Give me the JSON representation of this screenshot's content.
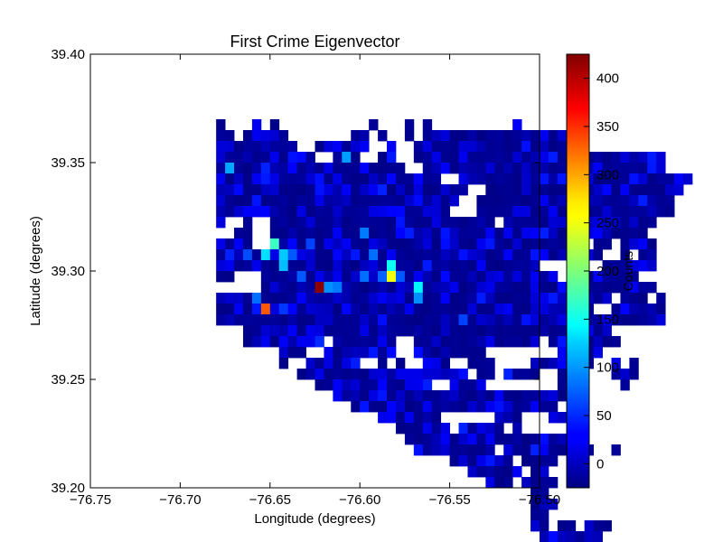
{
  "chart_data": {
    "type": "heatmap",
    "title": "First Crime Eigenvector",
    "xlabel": "Longitude (degrees)",
    "ylabel": "Latitude (degrees)",
    "xlim": [
      -76.75,
      -76.5
    ],
    "ylim": [
      39.2,
      39.4
    ],
    "xticks": [
      -76.75,
      -76.7,
      -76.65,
      -76.6,
      -76.55,
      -76.5
    ],
    "xtick_labels": [
      "−76.75",
      "−76.70",
      "−76.65",
      "−76.60",
      "−76.55",
      "−76.50"
    ],
    "yticks": [
      39.2,
      39.25,
      39.3,
      39.35,
      39.4
    ],
    "ytick_labels": [
      "39.20",
      "39.25",
      "39.30",
      "39.35",
      "39.40"
    ],
    "grid": false,
    "colorbar": {
      "label": "Counts",
      "range": [
        -25,
        425
      ],
      "colormap": "jet",
      "ticks": [
        0,
        50,
        100,
        150,
        200,
        250,
        300,
        350,
        400
      ],
      "tick_labels": [
        "0",
        "50",
        "100",
        "150",
        "200",
        "250",
        "300",
        "350",
        "400"
      ]
    },
    "bin": {
      "dlon": 0.005,
      "dlat": 0.005
    },
    "row_start_lat": 39.37,
    "rows": [
      "  #   # #          #   # #         #                ",
      "  ## #####       ## #  # #################          ",
      "  #########  ######  #  ###################         ",
      "  ###########  ###  ##  ############################",
      "  #####################  ###########################",
      "  #########################  ##########################",
      "  ############################  ######################",
      "  ###########################  ######################",
      "  ##########################   ######################",
      "  #  #  ######################### #################",
      "    ##  ##########################################",
      "  ####  ##################################  ## #### ",
      "  ###########################################  # ##",
      "  ####################################       ######  ",
      "  ##   #################################   ######   ",
      "       ################################## #########",
      "  ############################################ ### #",
      "  ##########################################  ######",
      "  ######################################## #########",
      "     #########################################",
      "     ######### #######  ############## ######## ",
      "         ###  ########  ########        ## ##  ",
      "         #  ######  # #  ###  ###    ####  #  # #",
      "           ################### ## ####  #     ###",
      "             #############  ####        #      #",
      "               ##########################",
      "                 #######################",
      "                    #######      ###   ##",
      "                      ###### ##### #",
      "                       ###################",
      "                        ######### ##########  #",
      "                            ####### ####",
      "                              ###### ##",
      "                                ### ####",
      "                                     ##",
      "                                     ### ",
      "                                     ##",
      "                                     ## ## ###  ",
      "                                      #######",
      "                                       ###"
    ],
    "hotspots": [
      {
        "lon": -76.6225,
        "lat": 39.2925,
        "value": 420
      },
      {
        "lon": -76.6525,
        "lat": 39.285,
        "value": 330
      },
      {
        "lon": -76.5825,
        "lat": 39.2975,
        "value": 250
      },
      {
        "lon": -76.646,
        "lat": 39.31,
        "value": 170
      },
      {
        "lon": -76.651,
        "lat": 39.3095,
        "value": 130
      },
      {
        "lon": -76.6435,
        "lat": 39.306,
        "value": 120
      },
      {
        "lon": -76.6425,
        "lat": 39.303,
        "value": 115
      },
      {
        "lon": -76.5825,
        "lat": 39.302,
        "value": 150
      },
      {
        "lon": -76.5675,
        "lat": 39.29,
        "value": 140
      },
      {
        "lon": -76.5675,
        "lat": 39.287,
        "value": 95
      },
      {
        "lon": -76.6825,
        "lat": 39.3455,
        "value": 110
      },
      {
        "lon": -76.6725,
        "lat": 39.348,
        "value": 105
      },
      {
        "lon": -76.6075,
        "lat": 39.353,
        "value": 100
      },
      {
        "lon": -76.6175,
        "lat": 39.29,
        "value": 95
      },
      {
        "lon": -76.6125,
        "lat": 39.291,
        "value": 85
      },
      {
        "lon": -76.6575,
        "lat": 39.288,
        "value": 80
      },
      {
        "lon": -76.6675,
        "lat": 39.2925,
        "value": 85
      },
      {
        "lon": -76.5975,
        "lat": 39.316,
        "value": 85
      },
      {
        "lon": -76.5925,
        "lat": 39.307,
        "value": 80
      },
      {
        "lon": -76.5975,
        "lat": 39.295,
        "value": 80
      },
      {
        "lon": -76.5875,
        "lat": 39.295,
        "value": 75
      },
      {
        "lon": -76.5775,
        "lat": 39.295,
        "value": 70
      },
      {
        "lon": -76.6325,
        "lat": 39.2975,
        "value": 70
      },
      {
        "lon": -76.6375,
        "lat": 39.308,
        "value": 70
      },
      {
        "lon": -76.6625,
        "lat": 39.308,
        "value": 65
      },
      {
        "lon": -76.6275,
        "lat": 39.3125,
        "value": 60
      },
      {
        "lon": -76.5425,
        "lat": 39.2775,
        "value": 60
      },
      {
        "lon": -76.6425,
        "lat": 39.285,
        "value": 55
      },
      {
        "lon": -76.6225,
        "lat": 39.265,
        "value": 50
      },
      {
        "lon": -76.6175,
        "lat": 39.245,
        "value": 45
      },
      {
        "lon": -76.5975,
        "lat": 39.235,
        "value": 40
      },
      {
        "lon": -76.5675,
        "lat": 39.3325,
        "value": 35
      },
      {
        "lon": -76.6925,
        "lat": 39.3325,
        "value": 35
      }
    ]
  }
}
